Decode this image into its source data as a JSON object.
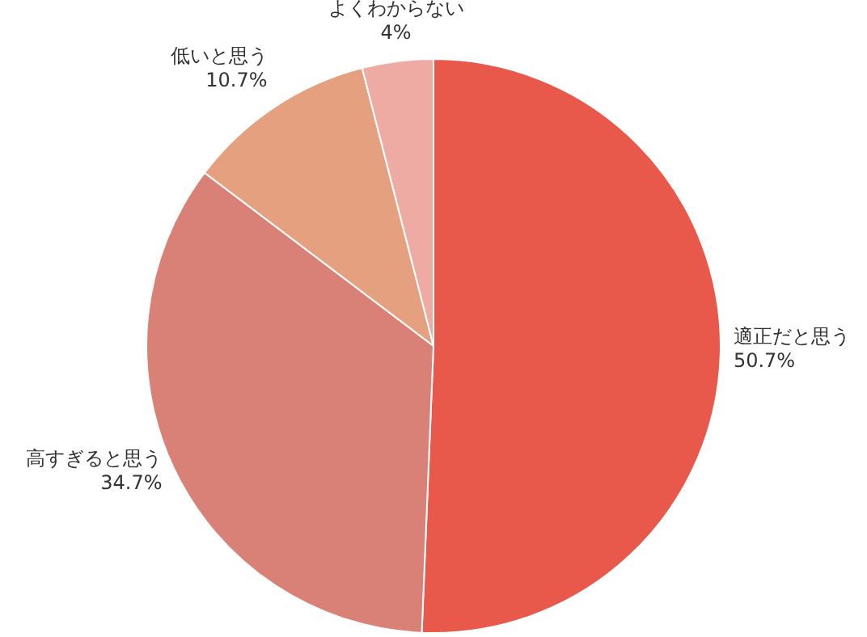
{
  "chart_data": {
    "type": "pie",
    "categories": [
      "適正だと思う",
      "高すぎると思う",
      "低いと思う",
      "よくわからない"
    ],
    "values": [
      50.7,
      34.7,
      10.7,
      4
    ],
    "value_labels": [
      "50.7%",
      "34.7%",
      "10.7%",
      "4%"
    ],
    "colors": [
      "#e8594b",
      "#d98077",
      "#e4a07f",
      "#edaba4"
    ],
    "legend": false
  }
}
